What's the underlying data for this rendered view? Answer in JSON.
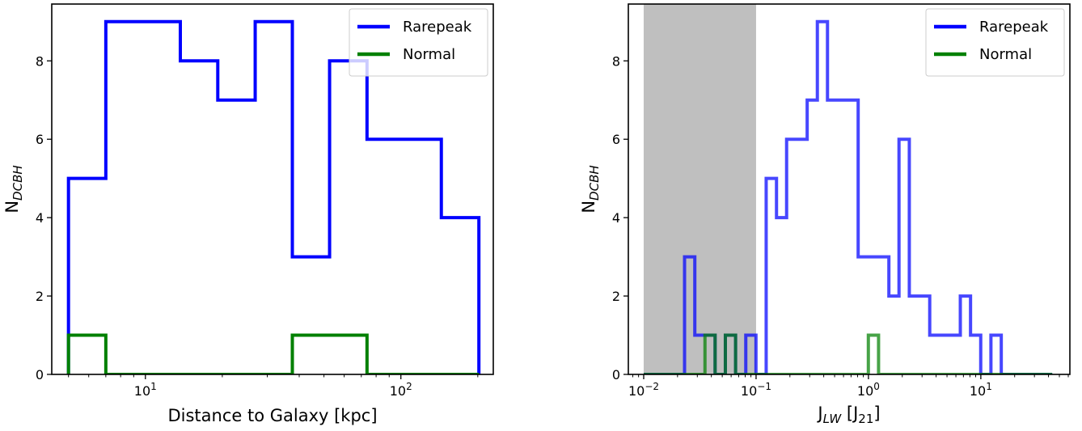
{
  "chart_data": [
    {
      "type": "histogram",
      "xscale": "log",
      "xlim": [
        4.3,
        230
      ],
      "ylim": [
        0,
        9.45
      ],
      "xlabel": "Distance to Galaxy [kpc]",
      "ylabel": {
        "main": "N",
        "sub": "DCBH"
      },
      "x_ticks": [
        {
          "value": 10,
          "base": "10",
          "exp": "1"
        },
        {
          "value": 100,
          "base": "10",
          "exp": "2"
        }
      ],
      "y_ticks": [
        {
          "value": 0,
          "label": "0"
        },
        {
          "value": 2,
          "label": "2"
        },
        {
          "value": 4,
          "label": "4"
        },
        {
          "value": 6,
          "label": "6"
        },
        {
          "value": 8,
          "label": "8"
        }
      ],
      "legend": {
        "position": "upper right"
      },
      "series": [
        {
          "name": "Rarepeak",
          "color": "#0000ff",
          "bin_edges": [
            5,
            7,
            9.8,
            13.7,
            19.2,
            26.9,
            37.6,
            52.6,
            73.7,
            103,
            144,
            202
          ],
          "counts": [
            5,
            9,
            9,
            8,
            7,
            9,
            3,
            8,
            6,
            6,
            4
          ]
        },
        {
          "name": "Normal",
          "color": "#008000",
          "bin_edges": [
            5,
            7,
            9.8,
            13.7,
            19.2,
            26.9,
            37.6,
            52.6,
            73.7,
            103,
            144,
            202
          ],
          "counts": [
            1,
            0,
            0,
            0,
            0,
            0,
            1,
            1,
            0,
            0,
            0
          ]
        }
      ]
    },
    {
      "type": "histogram",
      "xscale": "log",
      "xlim": [
        0.0073,
        62
      ],
      "ylim": [
        0,
        9.45
      ],
      "xlabel": {
        "main": "J",
        "sub": "LW",
        "unit_main": "J",
        "unit_sub": "21"
      },
      "ylabel": {
        "main": "N",
        "sub": "DCBH"
      },
      "shaded_region": {
        "x": [
          0.01,
          0.1
        ],
        "color": "#bfbfbf"
      },
      "x_ticks": [
        {
          "value": 0.01,
          "base": "10",
          "exp": "−2"
        },
        {
          "value": 0.1,
          "base": "10",
          "exp": "−1"
        },
        {
          "value": 1,
          "base": "10",
          "exp": "0"
        },
        {
          "value": 10,
          "base": "10",
          "exp": "1"
        }
      ],
      "y_ticks": [
        {
          "value": 0,
          "label": "0"
        },
        {
          "value": 2,
          "label": "2"
        },
        {
          "value": 4,
          "label": "4"
        },
        {
          "value": 6,
          "label": "6"
        },
        {
          "value": 8,
          "label": "8"
        }
      ],
      "legend": {
        "position": "upper right"
      },
      "series": [
        {
          "name": "Rarepeak",
          "color": "#0000ff",
          "bin_edges": [
            0.01,
            0.0123,
            0.0152,
            0.0187,
            0.0231,
            0.0285,
            0.0351,
            0.0432,
            0.0533,
            0.0657,
            0.081,
            0.0998,
            0.123,
            0.152,
            0.187,
            0.231,
            0.285,
            0.351,
            0.432,
            0.533,
            0.657,
            0.81,
            0.998,
            1.23,
            1.52,
            1.87,
            2.31,
            2.85,
            3.51,
            4.32,
            5.33,
            6.57,
            8.1,
            9.98,
            12.3,
            15.2,
            18.7,
            23.1,
            28.5,
            35.1,
            43.2
          ],
          "counts": [
            0,
            0,
            0,
            0,
            3,
            1,
            1,
            0,
            1,
            0,
            1,
            0,
            5,
            4,
            6,
            6,
            7,
            9,
            7,
            7,
            7,
            3,
            3,
            3,
            2,
            6,
            2,
            2,
            1,
            1,
            1,
            2,
            1,
            0,
            1,
            0,
            0,
            0,
            0,
            0
          ]
        },
        {
          "name": "Normal",
          "color": "#008000",
          "bin_edges": [
            0.01,
            0.0123,
            0.0152,
            0.0187,
            0.0231,
            0.0285,
            0.0351,
            0.0432,
            0.0533,
            0.0657,
            0.081,
            0.0998,
            0.123,
            0.152,
            0.187,
            0.231,
            0.285,
            0.351,
            0.432,
            0.533,
            0.657,
            0.81,
            0.998,
            1.23,
            1.52,
            1.87,
            2.31,
            2.85,
            3.51,
            4.32,
            5.33,
            6.57,
            8.1,
            9.98,
            12.3,
            15.2,
            18.7,
            23.1,
            28.5,
            35.1,
            43.2
          ],
          "counts": [
            0,
            0,
            0,
            0,
            0,
            0,
            1,
            0,
            1,
            0,
            0,
            0,
            0,
            0,
            0,
            0,
            0,
            0,
            0,
            0,
            0,
            0,
            1,
            0,
            0,
            0,
            0,
            0,
            0,
            0,
            0,
            0,
            0,
            0,
            0,
            0,
            0,
            0,
            0,
            0
          ]
        }
      ]
    }
  ]
}
